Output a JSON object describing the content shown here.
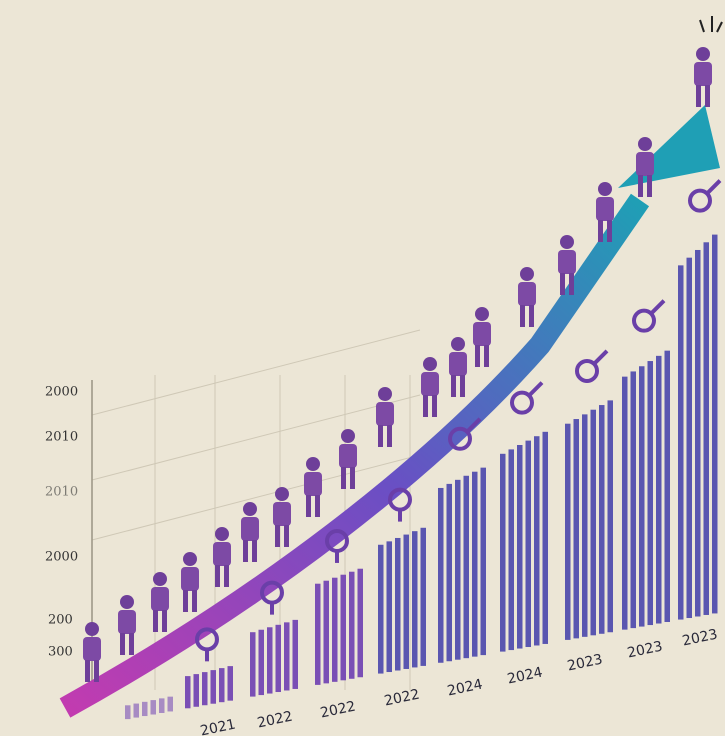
{
  "y_labels": [
    "2000",
    "2010",
    "2010",
    "2000",
    "200",
    "300"
  ],
  "x_labels": [
    "2021",
    "2022",
    "2022",
    "2022",
    "2024",
    "2024",
    "2023",
    "2023",
    "2023"
  ]
}
